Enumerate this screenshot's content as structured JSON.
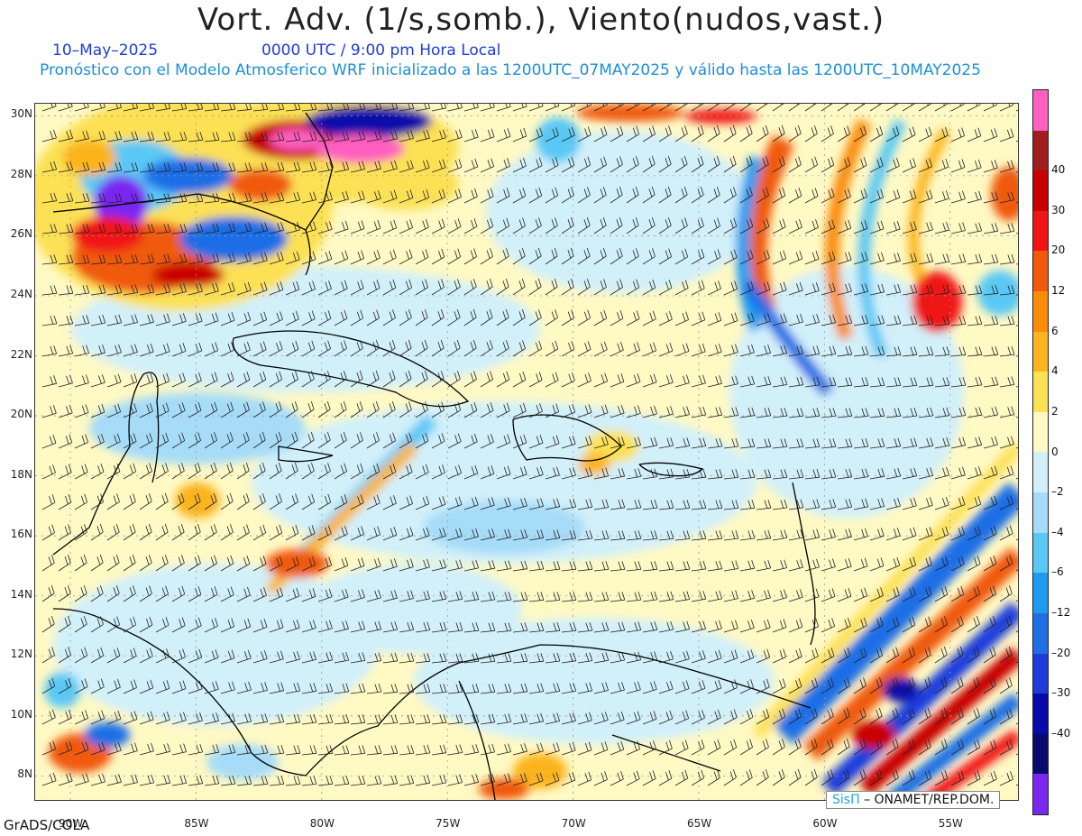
{
  "header": {
    "title": "Vort. Adv. (1/s,somb.), Viento(nudos,vast.)",
    "date": "10–May–2025",
    "time": "0000 UTC / 9:00 pm Hora Local",
    "info": "Pronóstico con el Modelo Atmosferico WRF inicializado a las 1200UTC_07MAY2025 y válido hasta las  1200UTC_10MAY2025"
  },
  "map": {
    "lat_labels": [
      "30N",
      "28N",
      "26N",
      "24N",
      "22N",
      "20N",
      "18N",
      "16N",
      "14N",
      "12N",
      "10N",
      "8N"
    ],
    "lon_labels": [
      "90W",
      "85W",
      "80W",
      "75W",
      "70W",
      "65W",
      "60W",
      "55W"
    ],
    "lat_range": [
      7.2,
      30.4
    ],
    "lon_range": [
      -91.4,
      -52.3
    ]
  },
  "colorbar": {
    "colors": [
      "#ff5fbe",
      "#a01e1e",
      "#c80000",
      "#f01414",
      "#f05a0a",
      "#fa8c0a",
      "#fcb41e",
      "#fce154",
      "#fff9c4",
      "#d2f0fa",
      "#a6dcf8",
      "#5ac8f5",
      "#1e9bf0",
      "#1e6ee6",
      "#1e3cdc",
      "#0a0aaa",
      "#0a0a6e",
      "#7a28f0"
    ],
    "labels": [
      "40",
      "30",
      "20",
      "12",
      "6",
      "4",
      "2",
      "0",
      "–2",
      "–4",
      "–6",
      "–12",
      "–20",
      "–30",
      "–40"
    ]
  },
  "footer": {
    "software": "GrADS/COLA",
    "credit_brand": "SisΠ",
    "credit_org": "– ONAMET/REP.DOM."
  }
}
